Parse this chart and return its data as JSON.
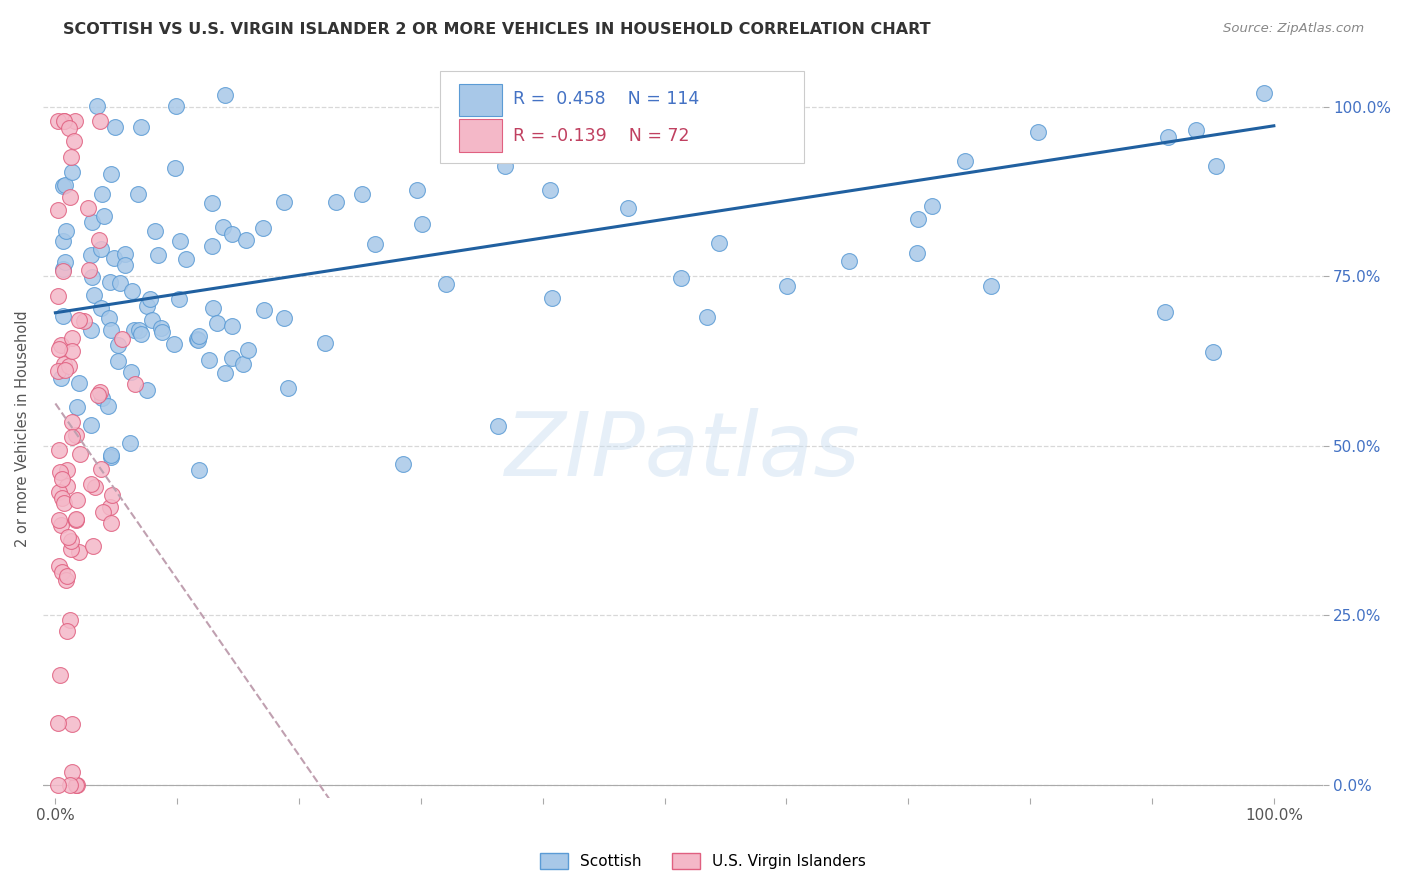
{
  "title": "SCOTTISH VS U.S. VIRGIN ISLANDER 2 OR MORE VEHICLES IN HOUSEHOLD CORRELATION CHART",
  "source": "Source: ZipAtlas.com",
  "ylabel": "2 or more Vehicles in Household",
  "yticks_labels": [
    "0.0%",
    "25.0%",
    "50.0%",
    "75.0%",
    "100.0%"
  ],
  "ytick_vals": [
    0.0,
    0.25,
    0.5,
    0.75,
    1.0
  ],
  "xtick_vals": [
    0.0,
    0.1,
    0.2,
    0.3,
    0.4,
    0.5,
    0.6,
    0.7,
    0.8,
    0.9,
    1.0
  ],
  "scottish_R": 0.458,
  "scottish_N": 114,
  "virgin_R": -0.139,
  "virgin_N": 72,
  "scottish_color": "#a8c8e8",
  "scottish_edge": "#5b9bd5",
  "virgin_color": "#f4b8c8",
  "virgin_edge": "#e06080",
  "trend_scottish_color": "#2060a0",
  "trend_ref_color": "#c0a0b0",
  "background": "#ffffff",
  "watermark": "ZIPatlas",
  "legend_R_scottish_color": "#4472c4",
  "legend_R_virgin_color": "#c04060",
  "grid_color": "#d8d8d8",
  "tick_color": "#555555",
  "ylabel_color": "#555555",
  "title_color": "#333333",
  "source_color": "#888888"
}
